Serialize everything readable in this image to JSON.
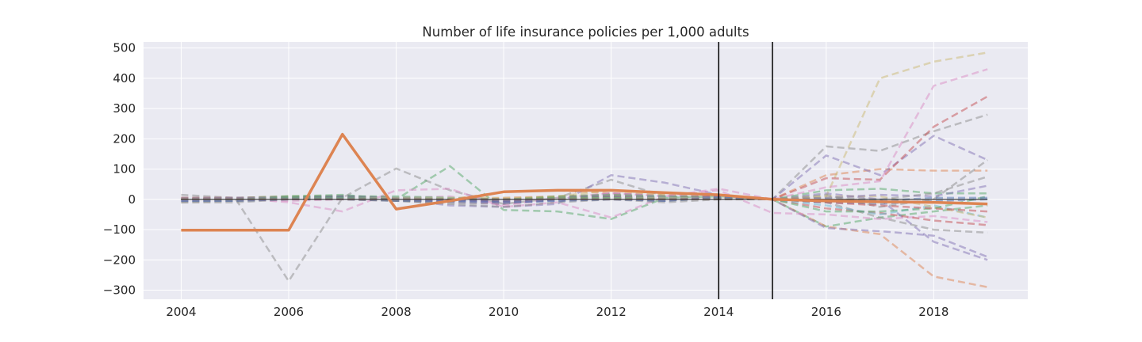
{
  "chart_data": {
    "type": "line",
    "title": "Number of life insurance policies per 1,000 adults",
    "xlabel": "",
    "ylabel": "",
    "x_ticks": [
      2004,
      2006,
      2008,
      2010,
      2012,
      2014,
      2016,
      2018
    ],
    "y_ticks": [
      -300,
      -200,
      -100,
      0,
      100,
      200,
      300,
      400,
      500
    ],
    "xlim": [
      2003.3,
      2019.75
    ],
    "ylim": [
      -330,
      520
    ],
    "grid": true,
    "legend": "none",
    "vertical_lines": [
      2014,
      2015
    ],
    "x": [
      2004,
      2005,
      2006,
      2007,
      2008,
      2009,
      2010,
      2011,
      2012,
      2013,
      2014,
      2015,
      2016,
      2017,
      2018,
      2019
    ],
    "highlight_series": {
      "color": "#dd8452",
      "values": [
        -102,
        -102,
        -102,
        215,
        -32,
        -5,
        25,
        30,
        30,
        22,
        15,
        0,
        -5,
        -8,
        -10,
        -15
      ]
    },
    "control_series": [
      {
        "color": "#8c8c8c",
        "values": [
          15,
          5,
          -270,
          5,
          102,
          30,
          -15,
          5,
          65,
          10,
          5,
          0,
          175,
          160,
          225,
          280
        ]
      },
      {
        "color": "#dd8452",
        "values": [
          5,
          5,
          10,
          10,
          5,
          0,
          25,
          30,
          20,
          15,
          5,
          0,
          80,
          100,
          95,
          95
        ]
      },
      {
        "color": "#55a868",
        "values": [
          0,
          5,
          10,
          15,
          0,
          110,
          -35,
          -40,
          -65,
          5,
          10,
          0,
          -90,
          -60,
          -40,
          -20
        ]
      },
      {
        "color": "#8172b3",
        "values": [
          -5,
          0,
          5,
          5,
          0,
          -20,
          -25,
          -15,
          80,
          55,
          15,
          0,
          145,
          80,
          210,
          130
        ]
      },
      {
        "color": "#ccb974",
        "values": [
          0,
          0,
          0,
          5,
          5,
          5,
          0,
          10,
          30,
          15,
          5,
          0,
          10,
          400,
          455,
          485
        ]
      },
      {
        "color": "#da8bc3",
        "values": [
          0,
          5,
          -10,
          -40,
          30,
          35,
          -25,
          -10,
          -60,
          10,
          35,
          0,
          40,
          60,
          375,
          430
        ]
      },
      {
        "color": "#c44e52",
        "values": [
          0,
          0,
          5,
          10,
          5,
          0,
          -10,
          0,
          10,
          0,
          5,
          0,
          70,
          65,
          240,
          340
        ]
      },
      {
        "color": "#dd8452",
        "values": [
          0,
          5,
          5,
          0,
          -5,
          -5,
          5,
          10,
          15,
          5,
          0,
          0,
          -90,
          -115,
          -255,
          -290
        ]
      },
      {
        "color": "#8172b3",
        "values": [
          -5,
          -5,
          0,
          5,
          0,
          -10,
          -15,
          0,
          20,
          10,
          10,
          0,
          -95,
          -105,
          -120,
          -190
        ]
      },
      {
        "color": "#8172b3",
        "values": [
          0,
          0,
          0,
          5,
          0,
          -5,
          -5,
          0,
          5,
          0,
          10,
          0,
          20,
          0,
          -140,
          -200
        ]
      },
      {
        "color": "#8c8c8c",
        "values": [
          -10,
          -5,
          0,
          5,
          -5,
          -10,
          -15,
          0,
          5,
          -5,
          5,
          0,
          -10,
          -60,
          -100,
          -110
        ]
      },
      {
        "color": "#da8bc3",
        "values": [
          0,
          0,
          -5,
          0,
          5,
          10,
          -20,
          5,
          20,
          10,
          30,
          -45,
          -50,
          -65,
          -55,
          -75
        ]
      },
      {
        "color": "#c44e52",
        "values": [
          5,
          5,
          5,
          10,
          5,
          0,
          -5,
          5,
          10,
          5,
          10,
          0,
          -30,
          -45,
          -70,
          -85
        ]
      },
      {
        "color": "#55a868",
        "values": [
          0,
          0,
          10,
          10,
          10,
          5,
          0,
          10,
          15,
          10,
          5,
          0,
          30,
          35,
          20,
          20
        ]
      },
      {
        "color": "#4c72b0",
        "values": [
          0,
          5,
          5,
          10,
          5,
          0,
          -5,
          5,
          10,
          5,
          5,
          0,
          -10,
          -15,
          -5,
          0
        ]
      },
      {
        "color": "#64b5cd",
        "values": [
          0,
          0,
          5,
          5,
          5,
          5,
          0,
          0,
          5,
          5,
          5,
          0,
          -20,
          -50,
          -20,
          -60
        ]
      },
      {
        "color": "#ccb974",
        "values": [
          5,
          5,
          5,
          5,
          5,
          5,
          5,
          5,
          5,
          5,
          5,
          0,
          10,
          10,
          -25,
          -60
        ]
      },
      {
        "color": "#8172b3",
        "values": [
          5,
          5,
          5,
          5,
          0,
          -5,
          -10,
          -5,
          0,
          -5,
          10,
          0,
          5,
          15,
          10,
          45
        ]
      },
      {
        "color": "#8c8c8c",
        "values": [
          -10,
          -10,
          0,
          0,
          -5,
          -15,
          -25,
          -10,
          0,
          -10,
          0,
          0,
          15,
          -25,
          0,
          130
        ]
      },
      {
        "color": "#55a868",
        "values": [
          0,
          0,
          5,
          5,
          0,
          0,
          0,
          5,
          5,
          0,
          0,
          0,
          -40,
          -40,
          -30,
          10
        ]
      },
      {
        "color": "#4c72b0",
        "values": [
          -5,
          -5,
          0,
          0,
          -5,
          -5,
          -10,
          -5,
          0,
          -5,
          5,
          0,
          0,
          -5,
          5,
          5
        ]
      },
      {
        "color": "#c44e52",
        "values": [
          0,
          0,
          0,
          0,
          0,
          0,
          0,
          0,
          0,
          0,
          0,
          0,
          -10,
          -20,
          -30,
          -40
        ]
      },
      {
        "color": "#8c8c8c",
        "values": [
          0,
          0,
          0,
          0,
          0,
          0,
          0,
          0,
          0,
          0,
          0,
          0,
          5,
          0,
          20,
          75
        ]
      }
    ],
    "dark_series": {
      "color": "#3b3b3b",
      "values": [
        0,
        0,
        0,
        0,
        0,
        0,
        0,
        0,
        0,
        0,
        0,
        0,
        0,
        0,
        0,
        0
      ]
    }
  }
}
